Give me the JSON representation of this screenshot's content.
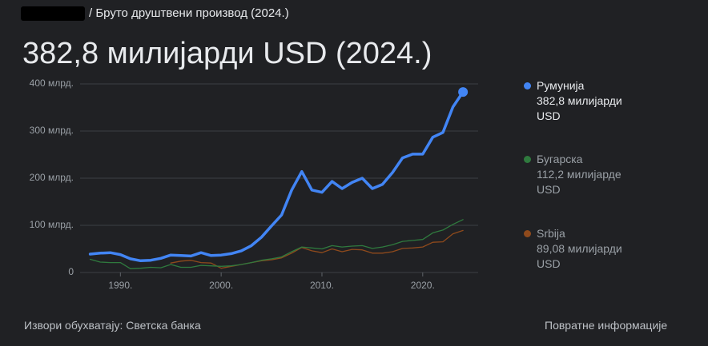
{
  "breadcrumb": "/ Бруто друштвени производ (2024.)",
  "headline": "382,8 милијарди USD (2024.)",
  "chart_data": {
    "type": "line",
    "x": [
      1987,
      1988,
      1989,
      1990,
      1991,
      1992,
      1993,
      1994,
      1995,
      1996,
      1997,
      1998,
      1999,
      2000,
      2001,
      2002,
      2003,
      2004,
      2005,
      2006,
      2007,
      2008,
      2009,
      2010,
      2011,
      2012,
      2013,
      2014,
      2015,
      2016,
      2017,
      2018,
      2019,
      2020,
      2021,
      2022,
      2023,
      2024
    ],
    "series": [
      {
        "name": "Румунија",
        "legend_label": "382,8 милијарди USD",
        "color": "#4285f4",
        "values": [
          39,
          41,
          42,
          38,
          29,
          25,
          26,
          30,
          37,
          36,
          35,
          42,
          36,
          37,
          40,
          46,
          57,
          75,
          99,
          122,
          175,
          214,
          175,
          170,
          193,
          178,
          191,
          200,
          178,
          187,
          212,
          243,
          251,
          251,
          287,
          297,
          351,
          382.8
        ]
      },
      {
        "name": "Бугарска",
        "legend_label": "112,2 милијарде USD",
        "color": "#2f7a3e",
        "values": [
          28,
          22,
          21,
          21,
          8,
          9,
          11,
          10,
          17,
          11,
          11,
          15,
          14,
          13,
          14,
          17,
          21,
          26,
          29,
          33,
          44,
          54,
          52,
          50,
          57,
          54,
          56,
          57,
          51,
          54,
          59,
          66,
          68,
          70,
          84,
          90,
          102,
          112.2
        ]
      },
      {
        "name": "Srbija",
        "legend_label": "89,08 милијарди USD",
        "color": "#8f4a1c",
        "values": [
          null,
          null,
          null,
          null,
          null,
          null,
          null,
          null,
          20,
          24,
          26,
          21,
          20,
          9,
          13,
          17,
          21,
          25,
          27,
          31,
          41,
          53,
          46,
          42,
          50,
          44,
          49,
          48,
          41,
          41,
          44,
          51,
          52,
          54,
          64,
          65,
          82,
          89.08
        ]
      }
    ],
    "xlim": [
      1986,
      2025.5
    ],
    "xticks": [
      {
        "value": 1990,
        "label": "1990."
      },
      {
        "value": 2000,
        "label": "2000."
      },
      {
        "value": 2010,
        "label": "2010."
      },
      {
        "value": 2020,
        "label": "2020."
      }
    ],
    "ylim": [
      0,
      400
    ],
    "yticks": [
      0,
      {
        "value": 100,
        "label": "100 млрд."
      },
      {
        "value": 200,
        "label": "200 млрд."
      },
      {
        "value": 300,
        "label": "300 млрд."
      },
      {
        "value": 400,
        "label": "400 млрд."
      }
    ],
    "grid": true
  },
  "footer": {
    "source": "Извори обухватају: Светска банка",
    "feedback": "Повратне информације"
  }
}
